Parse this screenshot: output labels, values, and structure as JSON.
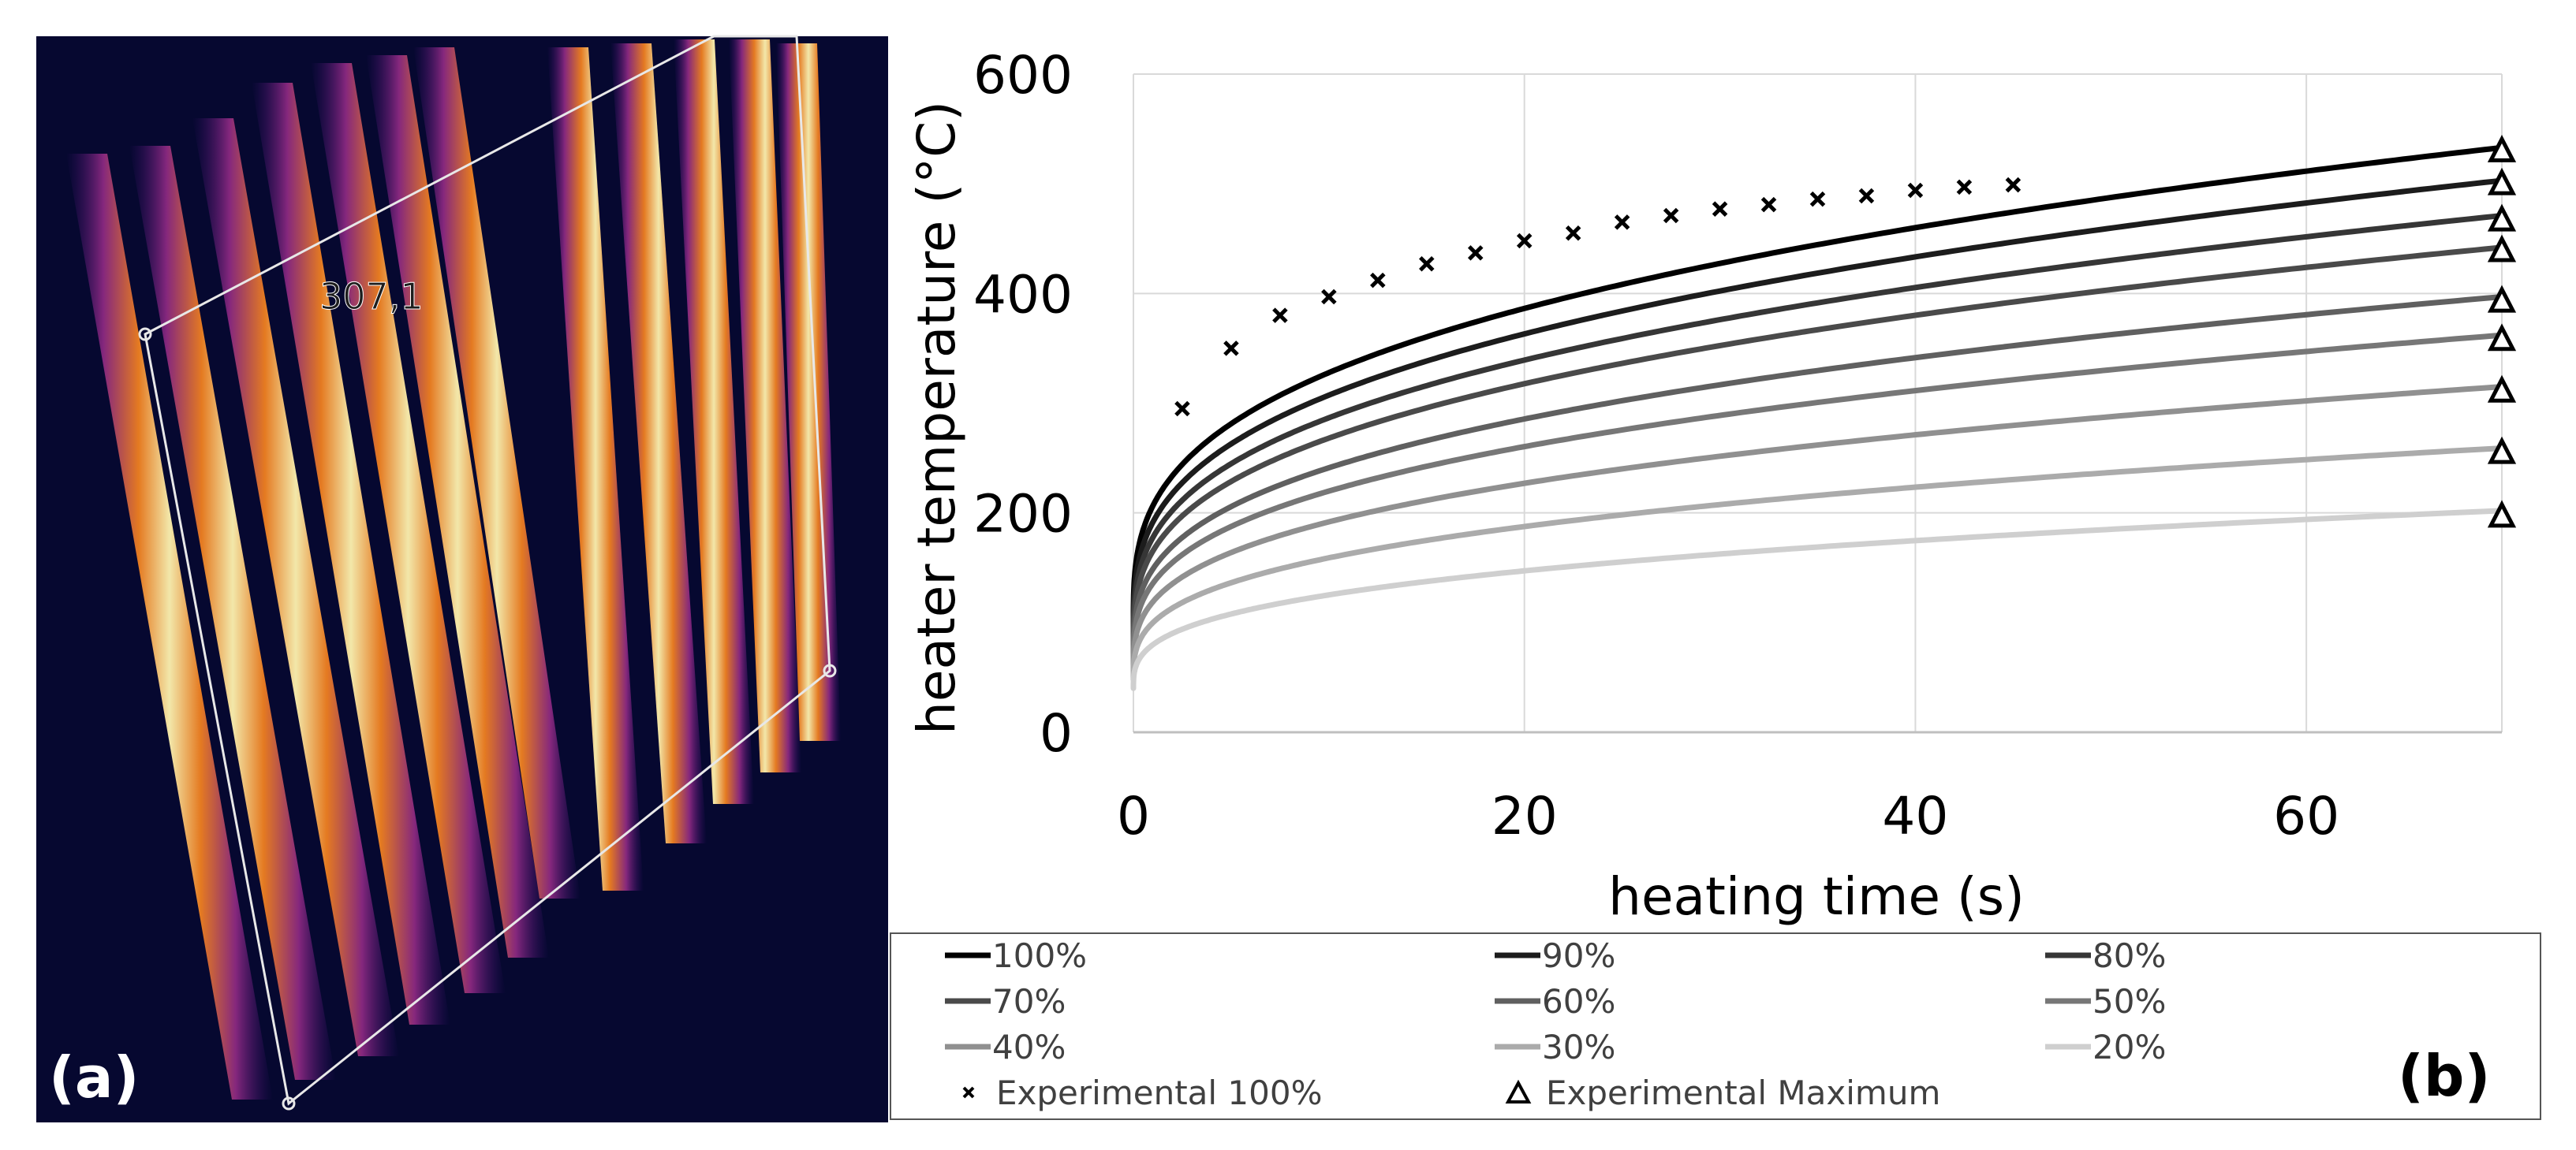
{
  "panel_a": {
    "measurement_label": "307,1",
    "panel_label": "(a)"
  },
  "panel_b": {
    "panel_label": "(b)"
  },
  "chart_data": {
    "type": "line",
    "title": "",
    "xlabel": "heating time (s)",
    "ylabel": "heater temperature (°C)",
    "xlim": [
      0,
      70
    ],
    "ylim": [
      0,
      600
    ],
    "xticks": [
      0,
      20,
      40,
      60
    ],
    "yticks": [
      0,
      200,
      400,
      600
    ],
    "grid": true,
    "legend_position": "bottom",
    "series": [
      {
        "name": "100%",
        "color": "#000000",
        "t0": 100,
        "t70": 533
      },
      {
        "name": "90%",
        "color": "#1c1c1c",
        "t0": 90,
        "t70": 503
      },
      {
        "name": "80%",
        "color": "#363636",
        "t0": 82,
        "t70": 471
      },
      {
        "name": "70%",
        "color": "#4a4a4a",
        "t0": 75,
        "t70": 442
      },
      {
        "name": "60%",
        "color": "#606060",
        "t0": 68,
        "t70": 397
      },
      {
        "name": "50%",
        "color": "#777777",
        "t0": 62,
        "t70": 362
      },
      {
        "name": "40%",
        "color": "#909090",
        "t0": 55,
        "t70": 315
      },
      {
        "name": "30%",
        "color": "#ababab",
        "t0": 48,
        "t70": 259
      },
      {
        "name": "20%",
        "color": "#cfcfcf",
        "t0": 40,
        "t70": 202
      }
    ],
    "experimental_100": {
      "name": "Experimental 100%",
      "x": [
        2.5,
        5,
        7.5,
        10,
        12.5,
        15,
        17.5,
        20,
        22.5,
        25,
        27.5,
        30,
        32.5,
        35,
        37.5,
        40,
        42.5,
        45
      ],
      "y": [
        295,
        350,
        380,
        397,
        412,
        427,
        437,
        448,
        455,
        465,
        471,
        477,
        481,
        486,
        489,
        494,
        497,
        499
      ]
    },
    "experimental_max": {
      "name": "Experimental Maximum",
      "x": [
        70,
        70,
        70,
        70,
        70,
        70,
        70,
        70,
        70
      ],
      "y": [
        530,
        500,
        467,
        439,
        393,
        358,
        311,
        255,
        197
      ]
    }
  }
}
